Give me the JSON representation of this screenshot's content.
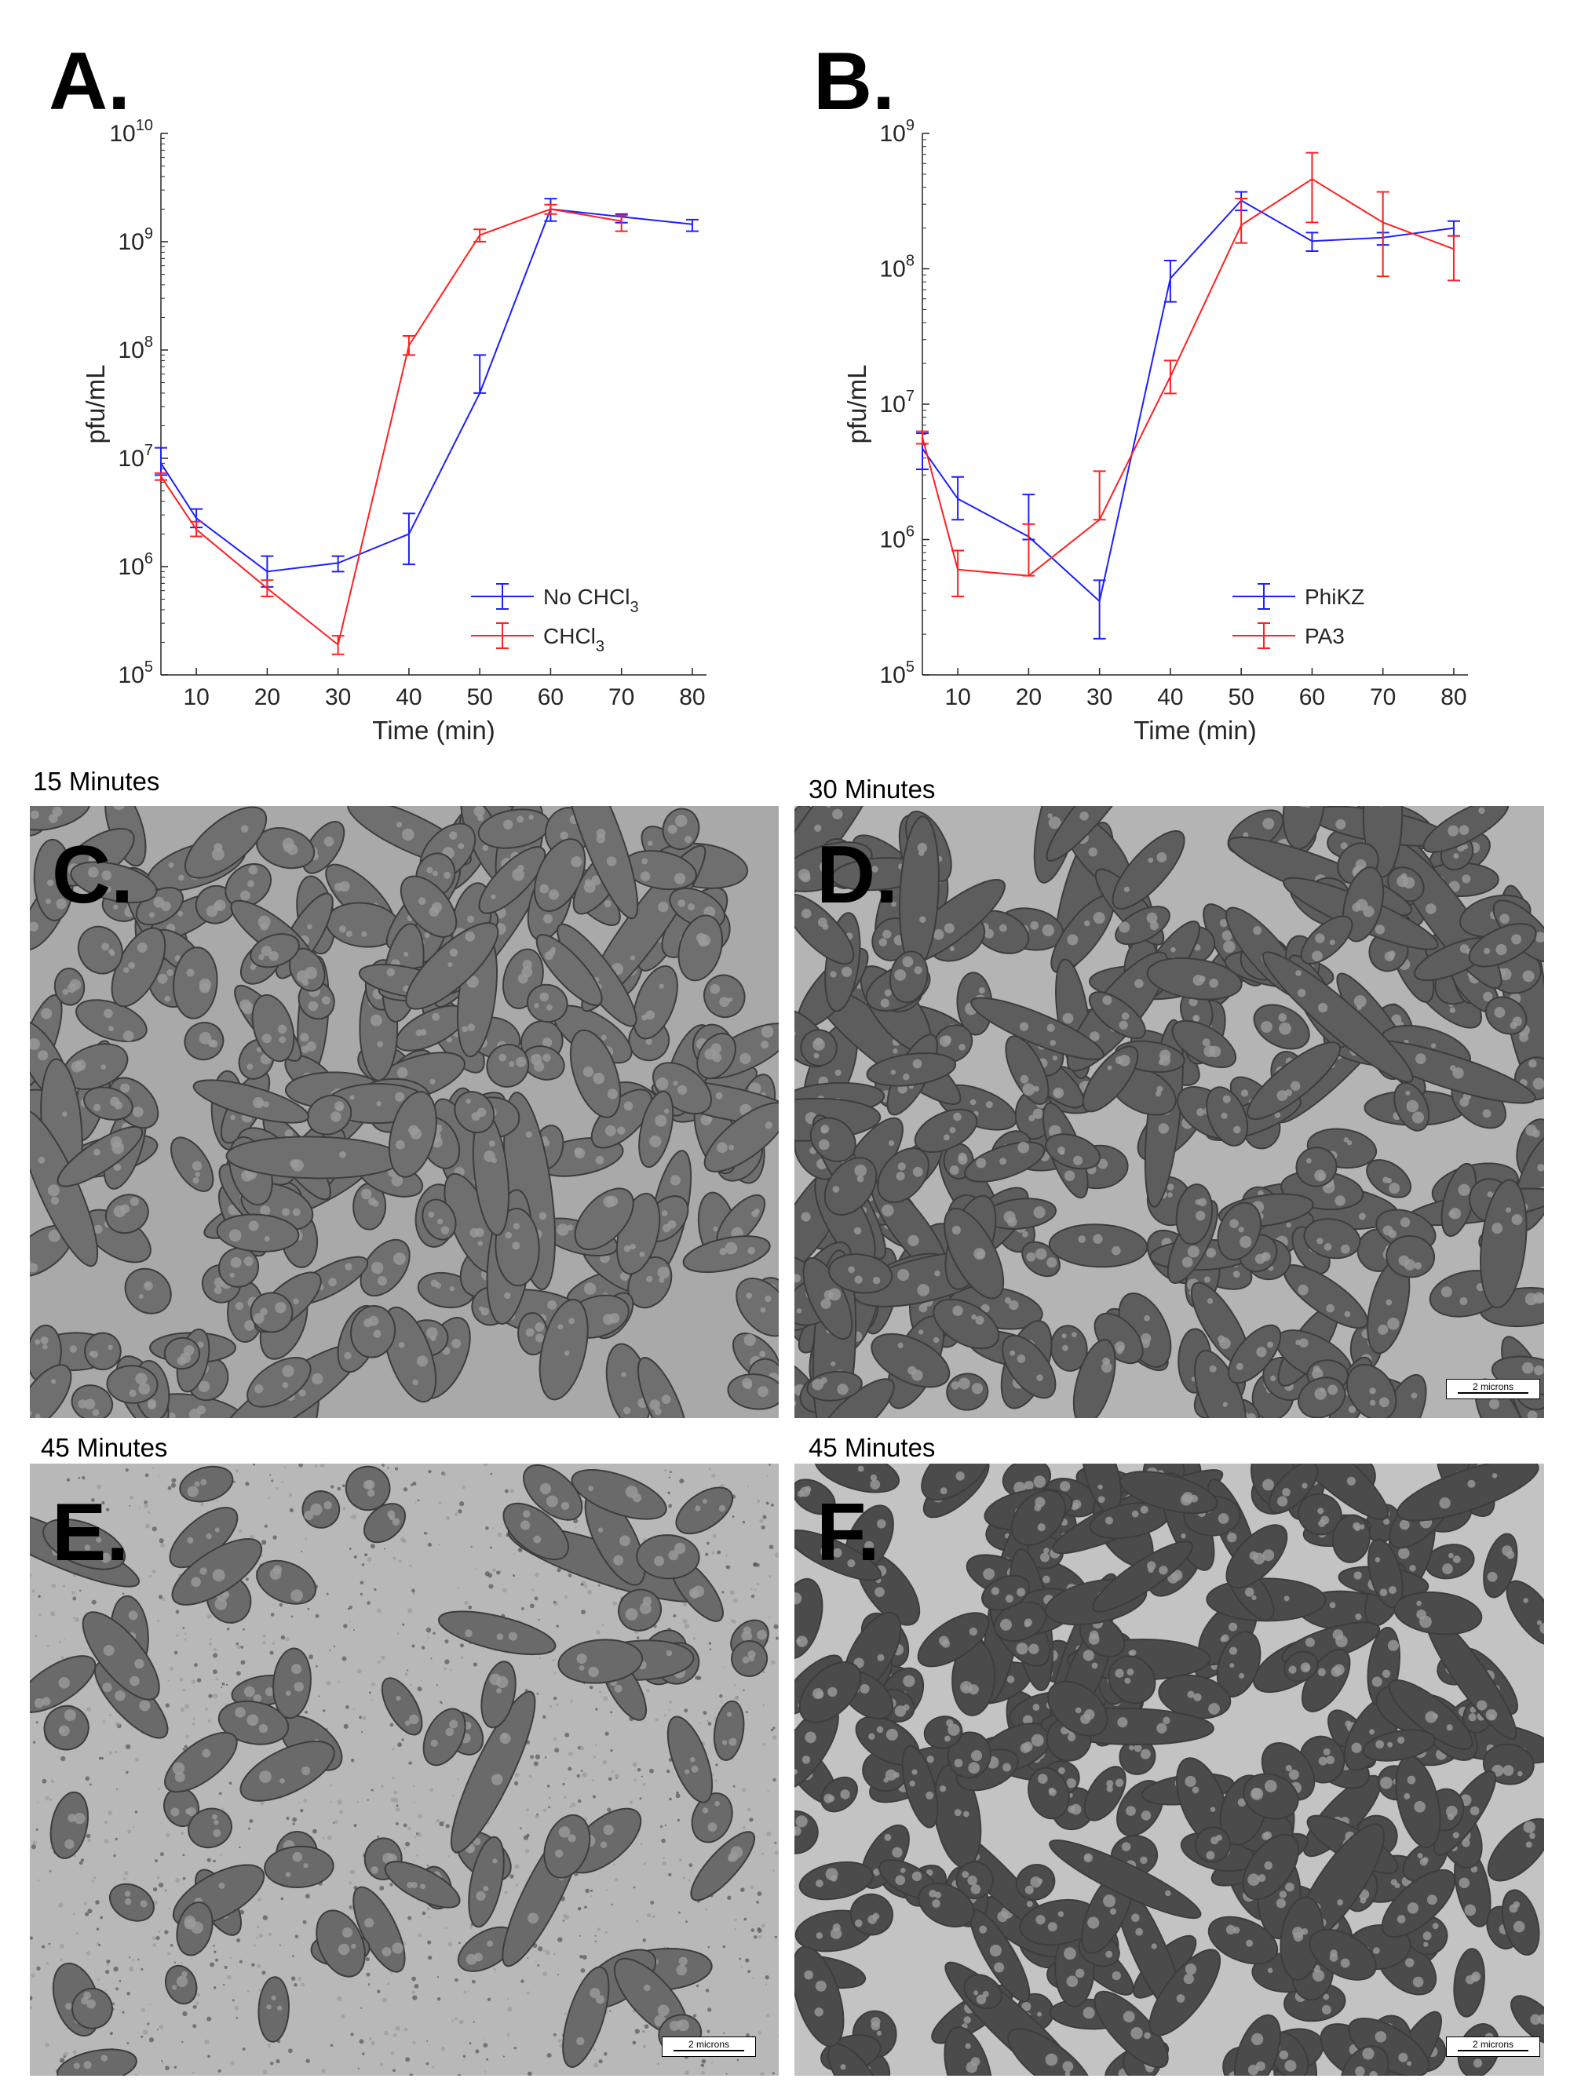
{
  "panels": {
    "A": "A.",
    "B": "B.",
    "C": "C.",
    "D": "D.",
    "E": "E.",
    "F": "F."
  },
  "captions": {
    "C": "15 Minutes",
    "D": "30 Minutes",
    "E": "45 Minutes",
    "F": "45 Minutes"
  },
  "scalebars": {
    "D": "2 microns",
    "E": "2 microns",
    "F": "2 microns"
  },
  "colors": {
    "blue": "#1f1fff",
    "red": "#ff2020"
  },
  "chart_data": [
    {
      "type": "line",
      "panel": "A",
      "xlabel": "Time (min)",
      "ylabel": "pfu/mL",
      "ylog": true,
      "xlim": [
        5,
        82
      ],
      "ylim_exp": [
        5,
        10
      ],
      "xticks": [
        10,
        20,
        30,
        40,
        50,
        60,
        70,
        80
      ],
      "legend_position": "bottom-right",
      "series": [
        {
          "name": "No CHCl",
          "name_sub": "3",
          "color": "#1f1fff",
          "x": [
            5,
            10,
            20,
            30,
            40,
            50,
            60,
            70,
            80
          ],
          "y": [
            9000000,
            2800000,
            900000,
            1080000,
            2000000,
            40000000,
            2000000000,
            1700000000,
            1450000000
          ],
          "err_lo": [
            7000000,
            2300000,
            650000,
            900000,
            1050000,
            40000000,
            1550000000,
            1500000000,
            1250000000
          ],
          "err_hi": [
            12500000,
            3400000,
            1250000,
            1250000,
            3100000,
            90000000,
            2500000000,
            1800000000,
            1600000000
          ]
        },
        {
          "name": "CHCl",
          "name_sub": "3",
          "color": "#ff2020",
          "x": [
            5,
            10,
            20,
            30,
            40,
            50,
            60,
            70
          ],
          "y": [
            6800000,
            2200000,
            630000,
            190000,
            110000000,
            1150000000,
            2000000000,
            1550000000
          ],
          "err_lo": [
            6300000,
            1900000,
            530000,
            155000,
            90000000,
            1000000000,
            1800000000,
            1250000000
          ],
          "err_hi": [
            7300000,
            2600000,
            750000,
            230000,
            135000000,
            1300000000,
            2200000000,
            1750000000
          ]
        }
      ]
    },
    {
      "type": "line",
      "panel": "B",
      "xlabel": "Time (min)",
      "ylabel": "pfu/mL",
      "ylog": true,
      "xlim": [
        5,
        82
      ],
      "ylim_exp": [
        5,
        9
      ],
      "xticks": [
        10,
        20,
        30,
        40,
        50,
        60,
        70,
        80
      ],
      "legend_position": "bottom-right",
      "series": [
        {
          "name": "PhiKZ",
          "name_sub": "",
          "color": "#1f1fff",
          "x": [
            5,
            10,
            20,
            30,
            40,
            50,
            60,
            70,
            80
          ],
          "y": [
            4700000,
            2000000,
            1050000,
            350000,
            85000000,
            320000000,
            160000000,
            170000000,
            200000000
          ],
          "err_lo": [
            3300000,
            1400000,
            1000000,
            185000,
            57000000,
            270000000,
            135000000,
            150000000,
            175000000
          ],
          "err_hi": [
            6100000,
            2900000,
            2150000,
            500000,
            115000000,
            370000000,
            185000000,
            185000000,
            225000000
          ]
        },
        {
          "name": "PA3",
          "name_sub": "",
          "color": "#ff2020",
          "x": [
            5,
            10,
            20,
            30,
            40,
            50,
            60,
            70,
            80
          ],
          "y": [
            5700000,
            600000,
            540000,
            1400000,
            16000000,
            210000000,
            460000000,
            220000000,
            140000000
          ],
          "err_lo": [
            5100000,
            380000,
            540000,
            1400000,
            12000000,
            155000000,
            220000000,
            88000000,
            82000000
          ],
          "err_hi": [
            6300000,
            830000,
            1300000,
            3200000,
            21000000,
            330000000,
            720000000,
            370000000,
            175000000
          ]
        }
      ]
    }
  ]
}
